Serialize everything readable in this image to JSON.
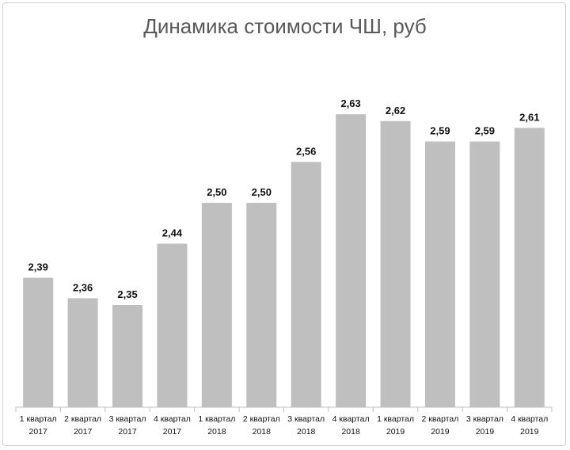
{
  "chart_data": {
    "type": "bar",
    "title": "Динамика стоимости ЧШ, руб",
    "categories": [
      [
        "1 квартал",
        "2017"
      ],
      [
        "2 квартал",
        "2017"
      ],
      [
        "3 квартал",
        "2017"
      ],
      [
        "4 квартал",
        "2017"
      ],
      [
        "1 квартал",
        "2018"
      ],
      [
        "2 квартал",
        "2018"
      ],
      [
        "3 квартал",
        "2018"
      ],
      [
        "4 квартал",
        "2018"
      ],
      [
        "1 квартал",
        "2019"
      ],
      [
        "2 квартал",
        "2019"
      ],
      [
        "3 квартал",
        "2019"
      ],
      [
        "4 квартал",
        "2019"
      ]
    ],
    "values": [
      2.39,
      2.36,
      2.35,
      2.44,
      2.5,
      2.5,
      2.56,
      2.63,
      2.62,
      2.59,
      2.59,
      2.61
    ],
    "labels": [
      "2,39",
      "2,36",
      "2,35",
      "2,44",
      "2,50",
      "2,50",
      "2,56",
      "2,63",
      "2,62",
      "2,59",
      "2,59",
      "2,61"
    ],
    "ylim": [
      2.2,
      2.65
    ],
    "grid": false,
    "bar_color": "#bfbfbf"
  }
}
